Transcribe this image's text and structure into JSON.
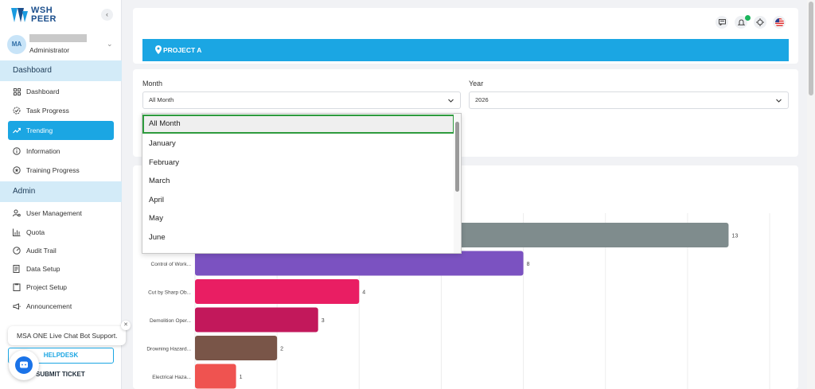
{
  "brand": {
    "line1": "WSH",
    "line2": "PEER"
  },
  "user": {
    "initials": "MA",
    "role": "Administrator"
  },
  "sidebar": {
    "sections": [
      {
        "title": "Dashboard"
      },
      {
        "title": "Admin"
      }
    ],
    "items": [
      {
        "label": "Dashboard",
        "icon": "grid-icon"
      },
      {
        "label": "Task Progress",
        "icon": "progress-icon"
      },
      {
        "label": "Trending",
        "icon": "trending-icon",
        "active": true
      },
      {
        "label": "Information",
        "icon": "info-icon"
      },
      {
        "label": "Training Progress",
        "icon": "star-circle-icon"
      },
      {
        "label": "User Management",
        "icon": "user-gear-icon"
      },
      {
        "label": "Quota",
        "icon": "bar-chart-icon"
      },
      {
        "label": "Audit Trail",
        "icon": "speedometer-icon"
      },
      {
        "label": "Data Setup",
        "icon": "data-icon"
      },
      {
        "label": "Project Setup",
        "icon": "clipboard-icon"
      },
      {
        "label": "Announcement",
        "icon": "megaphone-icon"
      }
    ]
  },
  "chat": {
    "tooltip": "MSA ONE Live Chat Bot Support.",
    "close": "✕"
  },
  "helpdesk": {
    "label": "HELPDESK"
  },
  "submit_ticket": {
    "label": "SUBMIT TICKET"
  },
  "project": {
    "name": "PROJECT A"
  },
  "filters": {
    "month": {
      "label": "Month",
      "value": "All Month"
    },
    "year": {
      "label": "Year",
      "value": "2026"
    }
  },
  "month_dropdown": {
    "options": [
      "All Month",
      "January",
      "February",
      "March",
      "April",
      "May",
      "June"
    ],
    "selected": "All Month"
  },
  "chart_data": {
    "type": "bar",
    "orientation": "horizontal",
    "categories": [
      "",
      "Control of Work...",
      "Cut by Sharp Ob...",
      "Demolition Oper...",
      "Drowning Hazard...",
      "Electrical Haza..."
    ],
    "values": [
      13,
      8,
      4,
      3,
      2,
      1
    ],
    "colors": [
      "#7f8c8d",
      "#7b52c1",
      "#e91e63",
      "#c2185b",
      "#795548",
      "#ef5350"
    ],
    "xlim": [
      0,
      14
    ],
    "grid": true
  }
}
